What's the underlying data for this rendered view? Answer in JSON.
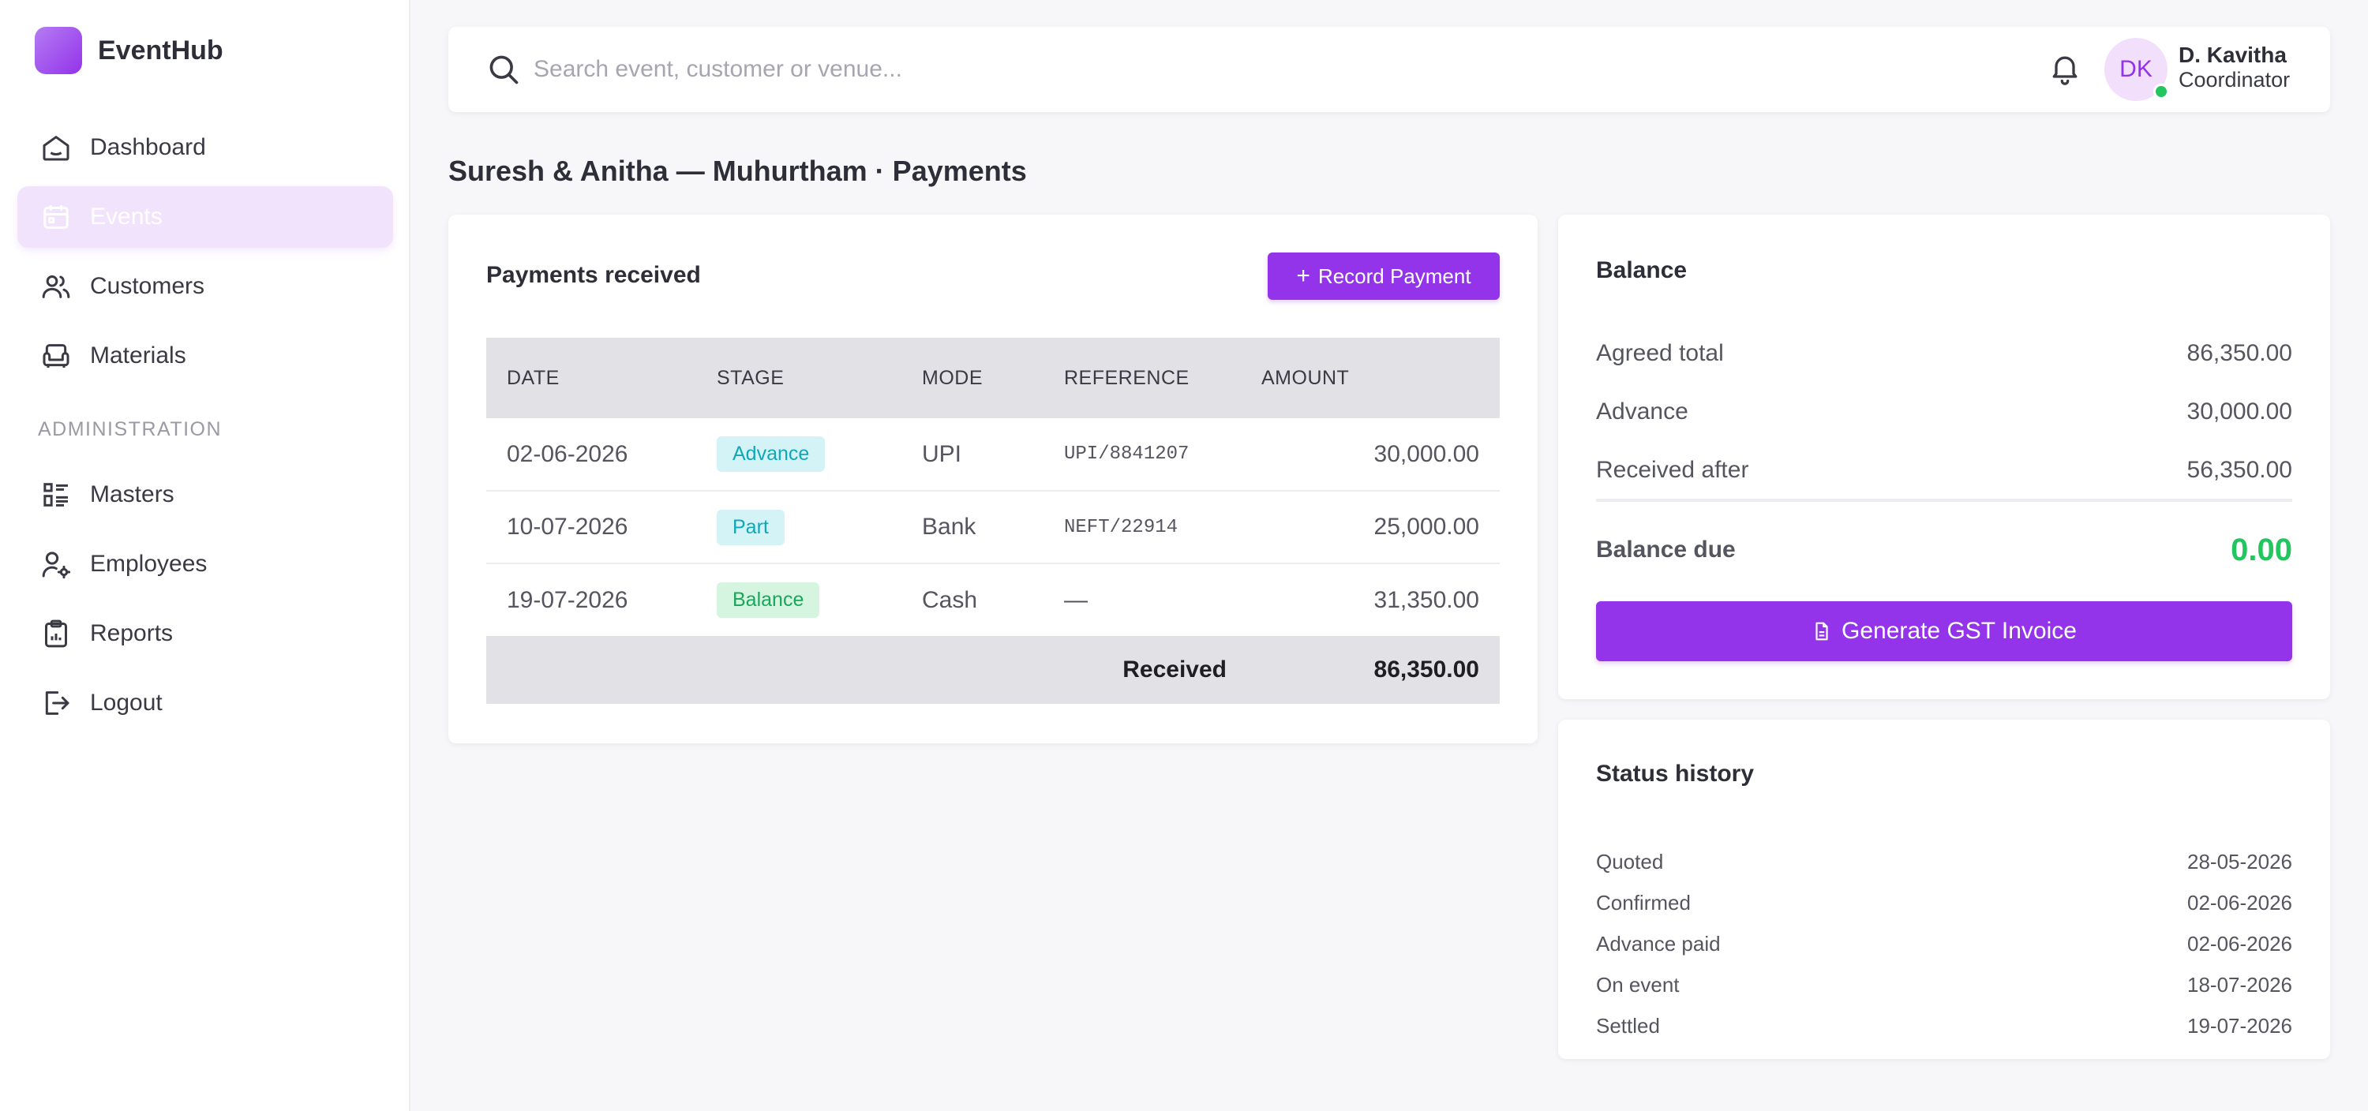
{
  "brand": {
    "name": "EventHub"
  },
  "sidebar": {
    "items": [
      {
        "label": "Dashboard",
        "icon": "home-icon"
      },
      {
        "label": "Events",
        "icon": "calendar-icon",
        "active": true
      },
      {
        "label": "Customers",
        "icon": "users-icon"
      },
      {
        "label": "Materials",
        "icon": "sofa-icon"
      }
    ],
    "section_label": "ADMINISTRATION",
    "admin_items": [
      {
        "label": "Masters",
        "icon": "list-icon"
      },
      {
        "label": "Employees",
        "icon": "user-cog-icon"
      },
      {
        "label": "Reports",
        "icon": "clipboard-icon"
      },
      {
        "label": "Logout",
        "icon": "logout-icon"
      }
    ]
  },
  "header": {
    "search_placeholder": "Search event, customer or venue...",
    "user": {
      "initials": "DK",
      "name": "D. Kavitha",
      "role": "Coordinator",
      "status_color": "#22c55e"
    }
  },
  "page": {
    "title": "Suresh & Anitha — Muhurtham · Payments"
  },
  "payments": {
    "title": "Payments received",
    "record_button": "Record Payment",
    "columns": [
      "DATE",
      "STAGE",
      "MODE",
      "REFERENCE",
      "AMOUNT"
    ],
    "rows": [
      {
        "date": "02-06-2026",
        "stage": "Advance",
        "mode": "UPI",
        "reference": "UPI/8841207",
        "amount": "30,000.00"
      },
      {
        "date": "10-07-2026",
        "stage": "Part",
        "mode": "Bank",
        "reference": "NEFT/22914",
        "amount": "25,000.00"
      },
      {
        "date": "19-07-2026",
        "stage": "Balance",
        "mode": "Cash",
        "reference": "—",
        "amount": "31,350.00"
      }
    ],
    "footer_label": "Received",
    "footer_total": "86,350.00"
  },
  "balance": {
    "title": "Balance",
    "rows": [
      {
        "label": "Agreed total",
        "value": "86,350.00"
      },
      {
        "label": "Advance",
        "value": "30,000.00"
      },
      {
        "label": "Received after",
        "value": "56,350.00"
      }
    ],
    "due_label": "Balance due",
    "due_value": "0.00",
    "due_color": "#22c55e",
    "invoice_button": "Generate GST Invoice"
  },
  "status_history": {
    "title": "Status history",
    "rows": [
      {
        "label": "Quoted",
        "date": "28-05-2026"
      },
      {
        "label": "Confirmed",
        "date": "02-06-2026"
      },
      {
        "label": "Advance paid",
        "date": "02-06-2026"
      },
      {
        "label": "On event",
        "date": "18-07-2026"
      },
      {
        "label": "Settled",
        "date": "19-07-2026"
      }
    ]
  },
  "colors": {
    "accent": "#9333ea",
    "accent_soft": "#f1e3fc",
    "success": "#22c55e"
  }
}
